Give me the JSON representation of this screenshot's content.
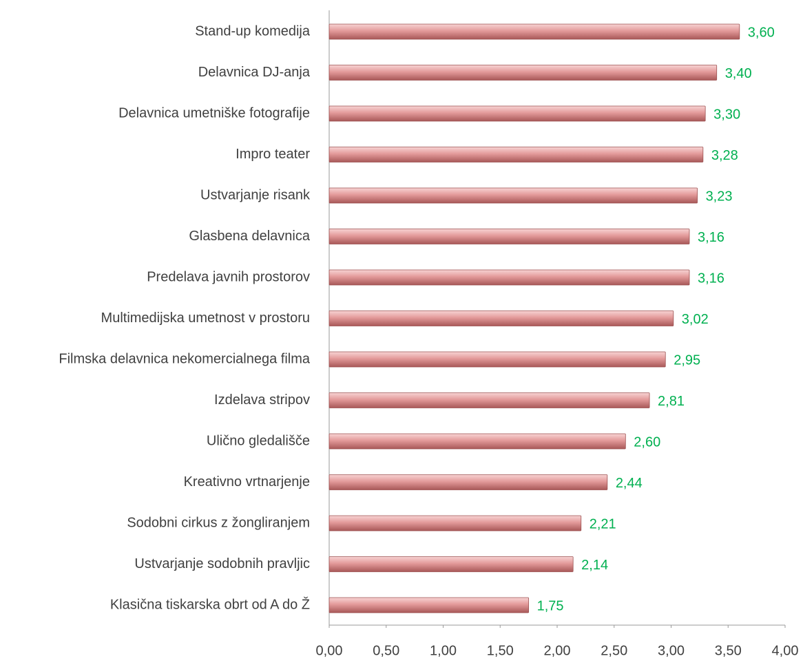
{
  "chart_data": {
    "type": "hbar",
    "categories": [
      "Stand-up komedija",
      "Delavnica DJ-anja",
      "Delavnica umetniške fotografije",
      "Impro teater",
      "Ustvarjanje risank",
      "Glasbena delavnica",
      "Predelava javnih prostorov",
      "Multimedijska umetnost v prostoru",
      "Filmska delavnica nekomercialnega filma",
      "Izdelava stripov",
      "Ulično gledališče",
      "Kreativno vrtnarjenje",
      "Sodobni cirkus z žongliranjem",
      "Ustvarjanje sodobnih pravljic",
      "Klasična tiskarska obrt od A do Ž"
    ],
    "values": [
      3.6,
      3.4,
      3.3,
      3.28,
      3.23,
      3.16,
      3.16,
      3.02,
      2.95,
      2.81,
      2.6,
      2.44,
      2.21,
      2.14,
      1.75
    ],
    "value_labels": [
      "3,60",
      "3,40",
      "3,30",
      "3,28",
      "3,23",
      "3,16",
      "3,16",
      "3,02",
      "2,95",
      "2,81",
      "2,60",
      "2,44",
      "2,21",
      "2,14",
      "1,75"
    ],
    "color": "#e39a9a",
    "xlim": [
      0,
      4
    ],
    "xticks": [
      {
        "value": 0,
        "label": "0,00"
      },
      {
        "value": 0.5,
        "label": "0,50"
      },
      {
        "value": 1,
        "label": "1,00"
      },
      {
        "value": 1.5,
        "label": "1,50"
      },
      {
        "value": 2,
        "label": "2,00"
      },
      {
        "value": 2.5,
        "label": "2,50"
      },
      {
        "value": 3,
        "label": "3,00"
      },
      {
        "value": 3.5,
        "label": "3,50"
      },
      {
        "value": 4,
        "label": "4,00"
      }
    ]
  }
}
